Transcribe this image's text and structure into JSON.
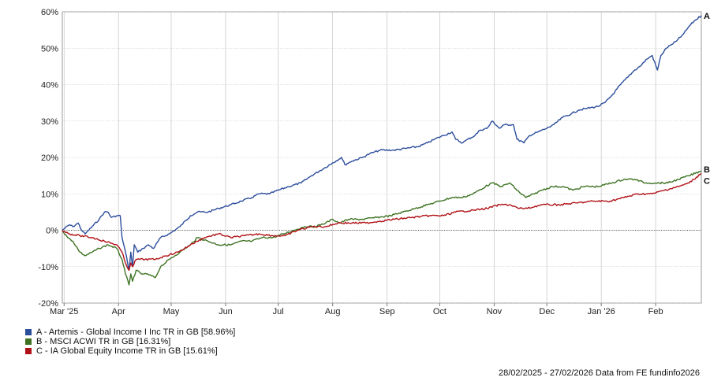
{
  "chart_data": {
    "type": "line",
    "ylim": [
      -20,
      60
    ],
    "y_ticks": [
      "60%",
      "50%",
      "40%",
      "30%",
      "20%",
      "10%",
      "0%",
      "-10%",
      "-20%"
    ],
    "x_ticks": [
      "Mar '25",
      "Apr",
      "May",
      "Jun",
      "Jul",
      "Aug",
      "Sep",
      "Oct",
      "Nov",
      "Dec",
      "Jan '26",
      "Feb"
    ],
    "grid": true,
    "x_range": [
      "2025-02-28",
      "2026-02-27"
    ],
    "series": [
      {
        "name": "A - Artemis - Global Income I Inc TR in GB [58.96%]",
        "end_label": "A",
        "color": "#2b4d9b",
        "points": [
          [
            "2025-02-28",
            0
          ],
          [
            "2025-03-04",
            1.5
          ],
          [
            "2025-03-06",
            1
          ],
          [
            "2025-03-09",
            2
          ],
          [
            "2025-03-11",
            0
          ],
          [
            "2025-03-13",
            -1
          ],
          [
            "2025-03-17",
            1
          ],
          [
            "2025-03-21",
            3
          ],
          [
            "2025-03-24",
            5
          ],
          [
            "2025-03-26",
            5
          ],
          [
            "2025-03-28",
            3.5
          ],
          [
            "2025-03-31",
            4
          ],
          [
            "2025-04-02",
            4
          ],
          [
            "2025-04-03",
            -2
          ],
          [
            "2025-04-05",
            -6
          ],
          [
            "2025-04-07",
            -11
          ],
          [
            "2025-04-08",
            -6
          ],
          [
            "2025-04-09",
            -10
          ],
          [
            "2025-04-10",
            -4
          ],
          [
            "2025-04-12",
            -6
          ],
          [
            "2025-04-15",
            -5
          ],
          [
            "2025-04-18",
            -4
          ],
          [
            "2025-04-21",
            -5
          ],
          [
            "2025-04-25",
            -2
          ],
          [
            "2025-04-30",
            -1
          ],
          [
            "2025-05-06",
            1
          ],
          [
            "2025-05-12",
            4
          ],
          [
            "2025-05-16",
            5
          ],
          [
            "2025-05-22",
            5
          ],
          [
            "2025-05-28",
            6
          ],
          [
            "2025-06-04",
            7
          ],
          [
            "2025-06-10",
            8
          ],
          [
            "2025-06-16",
            9
          ],
          [
            "2025-06-20",
            10
          ],
          [
            "2025-06-26",
            10
          ],
          [
            "2025-07-01",
            11
          ],
          [
            "2025-07-07",
            12
          ],
          [
            "2025-07-14",
            13
          ],
          [
            "2025-07-20",
            15
          ],
          [
            "2025-07-27",
            17
          ],
          [
            "2025-08-01",
            18.5
          ],
          [
            "2025-08-06",
            20
          ],
          [
            "2025-08-08",
            18
          ],
          [
            "2025-08-12",
            19
          ],
          [
            "2025-08-18",
            20
          ],
          [
            "2025-08-22",
            21
          ],
          [
            "2025-08-28",
            22
          ],
          [
            "2025-09-05",
            22
          ],
          [
            "2025-09-12",
            22.5
          ],
          [
            "2025-09-19",
            23
          ],
          [
            "2025-09-24",
            24
          ],
          [
            "2025-09-28",
            25
          ],
          [
            "2025-10-03",
            26
          ],
          [
            "2025-10-08",
            27
          ],
          [
            "2025-10-10",
            25
          ],
          [
            "2025-10-14",
            24
          ],
          [
            "2025-10-17",
            25
          ],
          [
            "2025-10-21",
            26
          ],
          [
            "2025-10-24",
            27.5
          ],
          [
            "2025-10-28",
            28
          ],
          [
            "2025-10-31",
            30
          ],
          [
            "2025-11-04",
            28
          ],
          [
            "2025-11-07",
            29
          ],
          [
            "2025-11-12",
            29
          ],
          [
            "2025-11-14",
            25
          ],
          [
            "2025-11-18",
            24
          ],
          [
            "2025-11-21",
            26
          ],
          [
            "2025-11-26",
            27
          ],
          [
            "2025-12-01",
            28
          ],
          [
            "2025-12-05",
            29
          ],
          [
            "2025-12-10",
            31
          ],
          [
            "2025-12-15",
            32
          ],
          [
            "2025-12-19",
            33
          ],
          [
            "2025-12-24",
            33.5
          ],
          [
            "2025-12-30",
            34
          ],
          [
            "2026-01-03",
            35
          ],
          [
            "2026-01-07",
            37
          ],
          [
            "2026-01-12",
            40
          ],
          [
            "2026-01-16",
            42
          ],
          [
            "2026-01-20",
            44
          ],
          [
            "2026-01-23",
            45
          ],
          [
            "2026-01-27",
            47
          ],
          [
            "2026-01-30",
            48
          ],
          [
            "2026-02-02",
            44
          ],
          [
            "2026-02-04",
            48
          ],
          [
            "2026-02-07",
            50
          ],
          [
            "2026-02-10",
            51
          ],
          [
            "2026-02-13",
            52
          ],
          [
            "2026-02-17",
            54
          ],
          [
            "2026-02-20",
            56
          ],
          [
            "2026-02-23",
            57.5
          ],
          [
            "2026-02-27",
            58.96
          ]
        ]
      },
      {
        "name": "B - MSCI ACWI TR in GB [16.31%]",
        "end_label": "B",
        "color": "#3f7323",
        "points": [
          [
            "2025-02-28",
            0
          ],
          [
            "2025-03-03",
            -2
          ],
          [
            "2025-03-06",
            -3
          ],
          [
            "2025-03-10",
            -6
          ],
          [
            "2025-03-13",
            -7
          ],
          [
            "2025-03-17",
            -6
          ],
          [
            "2025-03-21",
            -5
          ],
          [
            "2025-03-26",
            -4
          ],
          [
            "2025-03-31",
            -5
          ],
          [
            "2025-04-03",
            -8
          ],
          [
            "2025-04-05",
            -12
          ],
          [
            "2025-04-07",
            -15
          ],
          [
            "2025-04-08",
            -12
          ],
          [
            "2025-04-09",
            -14
          ],
          [
            "2025-04-11",
            -11
          ],
          [
            "2025-04-14",
            -12
          ],
          [
            "2025-04-17",
            -12
          ],
          [
            "2025-04-22",
            -13
          ],
          [
            "2025-04-25",
            -10
          ],
          [
            "2025-04-30",
            -8
          ],
          [
            "2025-05-06",
            -6
          ],
          [
            "2025-05-12",
            -4
          ],
          [
            "2025-05-16",
            -2
          ],
          [
            "2025-05-22",
            -3
          ],
          [
            "2025-05-28",
            -4
          ],
          [
            "2025-06-04",
            -4
          ],
          [
            "2025-06-10",
            -3
          ],
          [
            "2025-06-16",
            -3
          ],
          [
            "2025-06-22",
            -2
          ],
          [
            "2025-06-28",
            -2
          ],
          [
            "2025-07-04",
            -1
          ],
          [
            "2025-07-10",
            0
          ],
          [
            "2025-07-16",
            1
          ],
          [
            "2025-07-22",
            1
          ],
          [
            "2025-07-28",
            2
          ],
          [
            "2025-08-01",
            3
          ],
          [
            "2025-08-05",
            2
          ],
          [
            "2025-08-10",
            3
          ],
          [
            "2025-08-18",
            3
          ],
          [
            "2025-08-26",
            3.5
          ],
          [
            "2025-09-03",
            4
          ],
          [
            "2025-09-10",
            5
          ],
          [
            "2025-09-17",
            6
          ],
          [
            "2025-09-24",
            7
          ],
          [
            "2025-10-01",
            8
          ],
          [
            "2025-10-08",
            9
          ],
          [
            "2025-10-14",
            9
          ],
          [
            "2025-10-20",
            10
          ],
          [
            "2025-10-27",
            12
          ],
          [
            "2025-10-31",
            13
          ],
          [
            "2025-11-05",
            12
          ],
          [
            "2025-11-10",
            13
          ],
          [
            "2025-11-14",
            11
          ],
          [
            "2025-11-19",
            9
          ],
          [
            "2025-11-24",
            10
          ],
          [
            "2025-11-28",
            11
          ],
          [
            "2025-12-04",
            12
          ],
          [
            "2025-12-10",
            12
          ],
          [
            "2025-12-16",
            11
          ],
          [
            "2025-12-22",
            12
          ],
          [
            "2025-12-30",
            12
          ],
          [
            "2026-01-07",
            13
          ],
          [
            "2026-01-14",
            14
          ],
          [
            "2026-01-20",
            14
          ],
          [
            "2026-01-26",
            13
          ],
          [
            "2026-02-01",
            13
          ],
          [
            "2026-02-08",
            13
          ],
          [
            "2026-02-14",
            14
          ],
          [
            "2026-02-20",
            15
          ],
          [
            "2026-02-27",
            16.31
          ]
        ]
      },
      {
        "name": "C - IA Global Equity Income TR in GB [15.61%]",
        "end_label": "C",
        "color": "#b01116",
        "points": [
          [
            "2025-02-28",
            0
          ],
          [
            "2025-03-04",
            -1
          ],
          [
            "2025-03-10",
            -1.5
          ],
          [
            "2025-03-17",
            -2
          ],
          [
            "2025-03-24",
            -3
          ],
          [
            "2025-03-31",
            -4
          ],
          [
            "2025-04-03",
            -6
          ],
          [
            "2025-04-05",
            -9
          ],
          [
            "2025-04-07",
            -11
          ],
          [
            "2025-04-08",
            -9
          ],
          [
            "2025-04-09",
            -10
          ],
          [
            "2025-04-11",
            -8
          ],
          [
            "2025-04-16",
            -8
          ],
          [
            "2025-04-22",
            -8
          ],
          [
            "2025-04-28",
            -7
          ],
          [
            "2025-05-05",
            -6
          ],
          [
            "2025-05-12",
            -4
          ],
          [
            "2025-05-20",
            -2
          ],
          [
            "2025-05-28",
            -1
          ],
          [
            "2025-06-04",
            -2
          ],
          [
            "2025-06-12",
            -1.5
          ],
          [
            "2025-06-20",
            -1
          ],
          [
            "2025-06-28",
            -1.5
          ],
          [
            "2025-07-05",
            -1.5
          ],
          [
            "2025-07-12",
            0
          ],
          [
            "2025-07-20",
            1
          ],
          [
            "2025-07-28",
            1
          ],
          [
            "2025-08-04",
            2
          ],
          [
            "2025-08-12",
            2
          ],
          [
            "2025-08-20",
            2
          ],
          [
            "2025-08-28",
            2.5
          ],
          [
            "2025-09-05",
            3
          ],
          [
            "2025-09-15",
            3.5
          ],
          [
            "2025-09-25",
            4
          ],
          [
            "2025-10-03",
            4
          ],
          [
            "2025-10-10",
            5
          ],
          [
            "2025-10-20",
            5.5
          ],
          [
            "2025-10-28",
            6
          ],
          [
            "2025-11-04",
            7
          ],
          [
            "2025-11-10",
            7
          ],
          [
            "2025-11-15",
            6
          ],
          [
            "2025-11-20",
            6
          ],
          [
            "2025-11-28",
            7
          ],
          [
            "2025-12-08",
            7
          ],
          [
            "2025-12-18",
            7.5
          ],
          [
            "2025-12-28",
            8
          ],
          [
            "2026-01-06",
            8
          ],
          [
            "2026-01-14",
            9
          ],
          [
            "2026-01-22",
            10
          ],
          [
            "2026-01-30",
            10
          ],
          [
            "2026-02-06",
            11
          ],
          [
            "2026-02-14",
            12
          ],
          [
            "2026-02-20",
            13
          ],
          [
            "2026-02-27",
            15.61
          ]
        ]
      }
    ]
  },
  "footer": "28/02/2025 - 27/02/2026 Data from FE fundinfo2026"
}
